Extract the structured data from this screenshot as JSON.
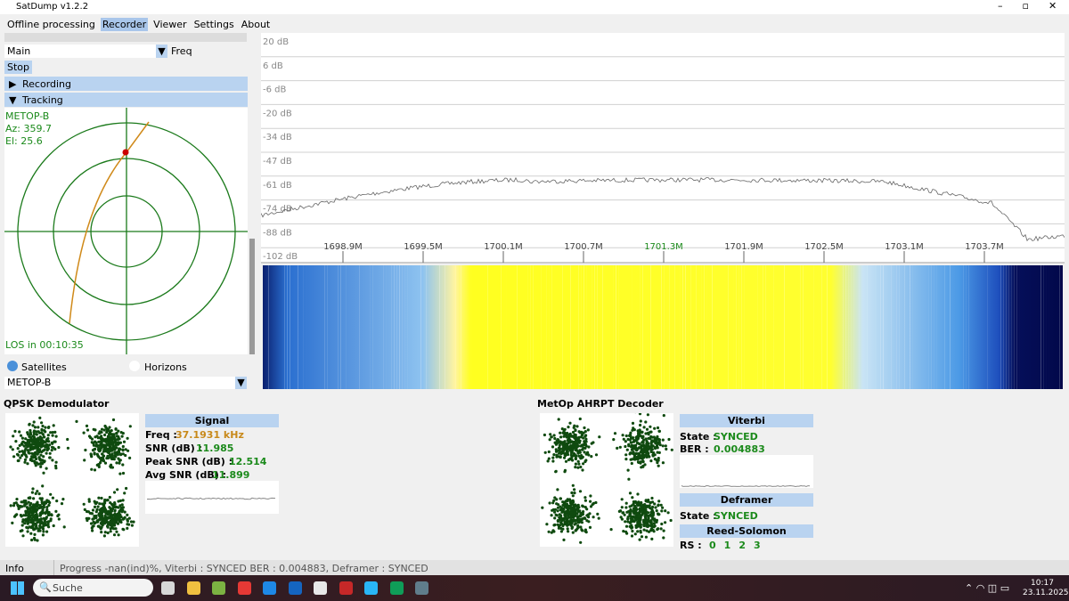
{
  "window": {
    "title": "SatDump v1.2.2"
  },
  "menu": [
    "Offline processing",
    "Recorder",
    "Viewer",
    "Settings",
    "About"
  ],
  "recorder": {
    "source": "Main",
    "freq_label": "Freq",
    "stop": "Stop",
    "sections": [
      "Recording",
      "Tracking"
    ]
  },
  "tracking": {
    "satellite": "METOP-B",
    "az": "Az: 359.7",
    "el": "El: 25.6",
    "los": "LOS in 00:10:35",
    "options": [
      "Satellites",
      "Horizons"
    ],
    "selected": "METOP-B"
  },
  "fft": {
    "y_labels": [
      "20 dB",
      "6 dB",
      "-6 dB",
      "-20 dB",
      "-34 dB",
      "-47 dB",
      "-61 dB",
      "-74 dB",
      "-88 dB",
      "-102 dB"
    ],
    "x_labels": [
      "1698.9M",
      "1699.5M",
      "1700.1M",
      "1700.7M",
      "1701.3M",
      "1701.9M",
      "1702.5M",
      "1703.1M",
      "1703.7M"
    ]
  },
  "demodulator": {
    "title": "QPSK Demodulator",
    "signal_header": "Signal",
    "rows": [
      {
        "label": "Freq :",
        "value": "37.1931 kHz"
      },
      {
        "label": "SNR (dB) :",
        "value": "11.985"
      },
      {
        "label": "Peak SNR (dB) :",
        "value": "12.514"
      },
      {
        "label": "Avg SNR (dB) :",
        "value": "11.899"
      }
    ]
  },
  "decoder": {
    "title": "MetOp AHRPT Decoder",
    "viterbi": {
      "header": "Viterbi",
      "state_label": "State :",
      "state": "SYNCED",
      "ber_label": "BER :",
      "ber": "0.004883"
    },
    "deframer": {
      "header": "Deframer",
      "state_label": "State :",
      "state": "SYNCED"
    },
    "reed_solomon": {
      "header": "Reed-Solomon",
      "label": "RS   :",
      "values": [
        "0",
        "1",
        "2",
        "3"
      ]
    }
  },
  "status": {
    "label": "Info",
    "message": "Progress -nan(ind)%, Viterbi : SYNCED BER : 0.004883, Deframer : SYNCED"
  },
  "taskbar": {
    "search": "Suche",
    "time": "10:17",
    "date": "23.11.2025"
  }
}
